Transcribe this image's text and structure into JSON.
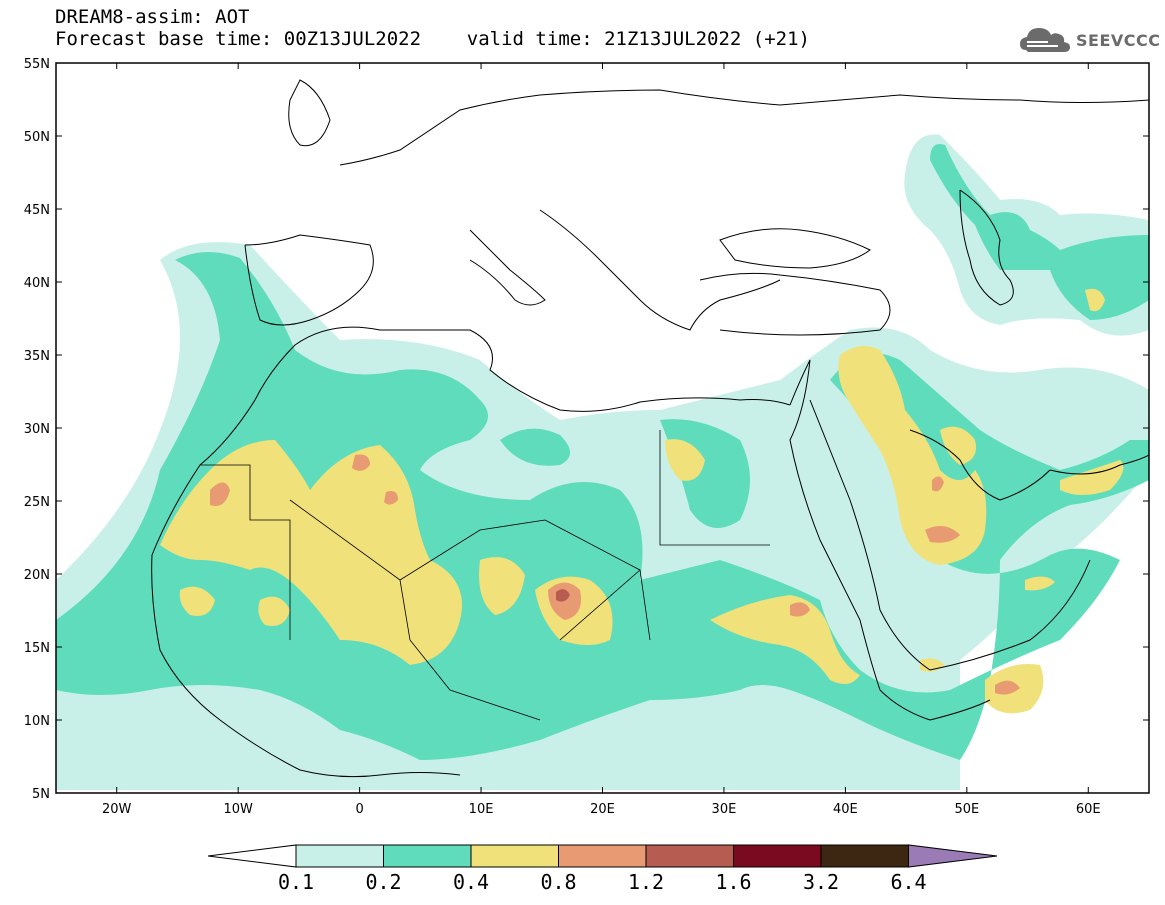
{
  "header": {
    "title_line1": "DREAM8-assim: AOT",
    "title_line2": "Forecast base time: 00Z13JUL2022    valid time: 21Z13JUL2022 (+21)"
  },
  "logo": {
    "text": "SEEVCCC",
    "icon": "cloud-icon"
  },
  "map": {
    "lon_range": [
      -25,
      65
    ],
    "lat_range": [
      5,
      55
    ],
    "lat_ticks": [
      "55N",
      "50N",
      "45N",
      "40N",
      "35N",
      "30N",
      "25N",
      "20N",
      "15N",
      "10N",
      "5N"
    ],
    "lon_ticks": [
      "20W",
      "10W",
      "0",
      "10E",
      "20E",
      "30E",
      "40E",
      "50E",
      "60E"
    ],
    "background": "#ffffff",
    "coastline_color": "#000000"
  },
  "legend": {
    "labels": [
      "0.1",
      "0.2",
      "0.4",
      "0.8",
      "1.2",
      "1.6",
      "3.2",
      "6.4"
    ],
    "colors": [
      "#c8f0e8",
      "#5fdcbc",
      "#f0e17a",
      "#e89a73",
      "#b65c50",
      "#7a0a1f",
      "#3d2612",
      "#9b7bb5"
    ],
    "under_color": "#ffffff",
    "over_color": "#9b7bb5"
  },
  "aot_colors": {
    "c1": "#c8f0e8",
    "c2": "#5fdcbc",
    "c3": "#f0e17a",
    "c4": "#e89a73",
    "c5": "#b65c50"
  }
}
